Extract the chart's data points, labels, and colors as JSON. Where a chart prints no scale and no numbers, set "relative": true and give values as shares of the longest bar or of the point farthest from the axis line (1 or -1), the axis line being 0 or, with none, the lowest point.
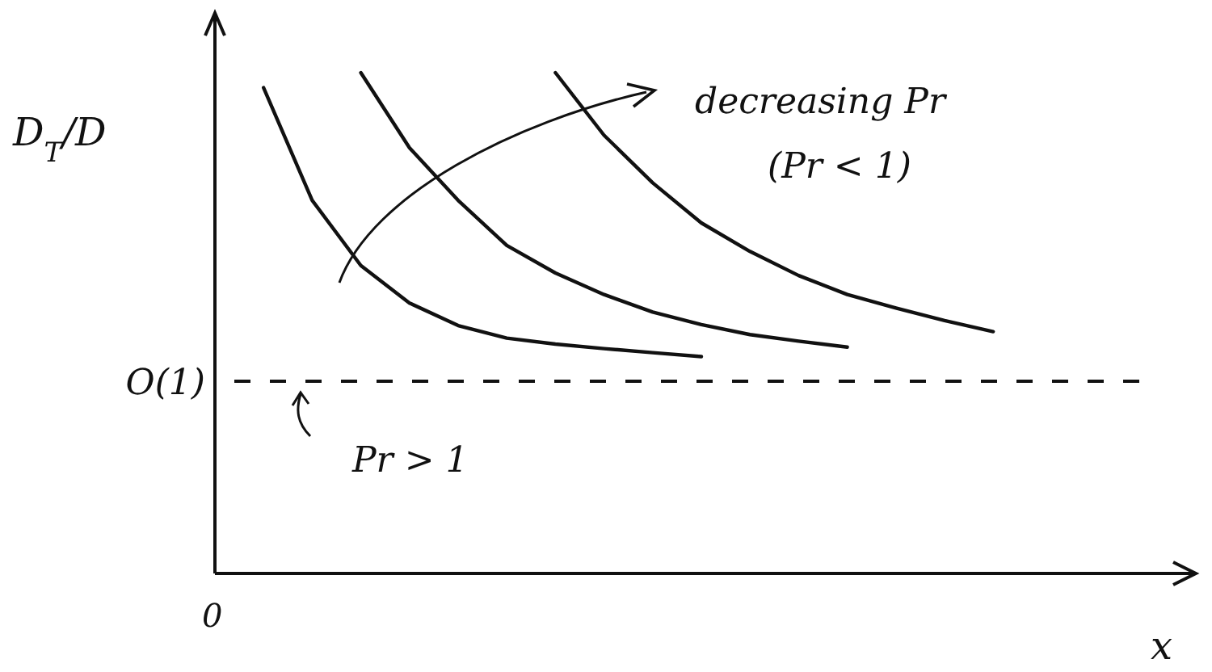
{
  "chart_data": {
    "type": "line",
    "relative": true,
    "xlabel": "x",
    "ylabel": "D$_{T}$/D",
    "marker": "none",
    "line_style": "solid",
    "categories": [
      null,
      null,
      null,
      null,
      null,
      null,
      null,
      null,
      null,
      null,
      null,
      null,
      null,
      null,
      null,
      null,
      null,
      null,
      null,
      null,
      null
    ],
    "series": [
      {
        "color": "#111111",
        "values": [
          null,
          0.97,
          0.745,
          0.615,
          0.54,
          0.495,
          0.47,
          0.458,
          0.449,
          0.441,
          0.433,
          null,
          null,
          null,
          null,
          null,
          null,
          null,
          null,
          null,
          null
        ]
      },
      {
        "color": "#111111",
        "values": [
          null,
          null,
          null,
          1.0,
          0.85,
          0.745,
          0.655,
          0.6,
          0.557,
          0.522,
          0.497,
          0.477,
          0.464,
          0.452,
          null,
          null,
          null,
          null,
          null,
          null,
          null
        ]
      },
      {
        "color": "#111111",
        "values": [
          null,
          null,
          null,
          null,
          null,
          null,
          null,
          1.0,
          0.875,
          0.78,
          0.7,
          0.643,
          0.595,
          0.557,
          0.53,
          0.505,
          0.483,
          null,
          null,
          null,
          null
        ]
      }
    ],
    "ref_lines": [
      {
        "axis": "y",
        "value": 0.384,
        "label": "O(1)",
        "color": "#111111",
        "line_style": "dashed"
      }
    ],
    "annotations": [
      "decreasing Pr",
      "(Pr < 1)",
      "Pr > 1",
      "0"
    ]
  }
}
